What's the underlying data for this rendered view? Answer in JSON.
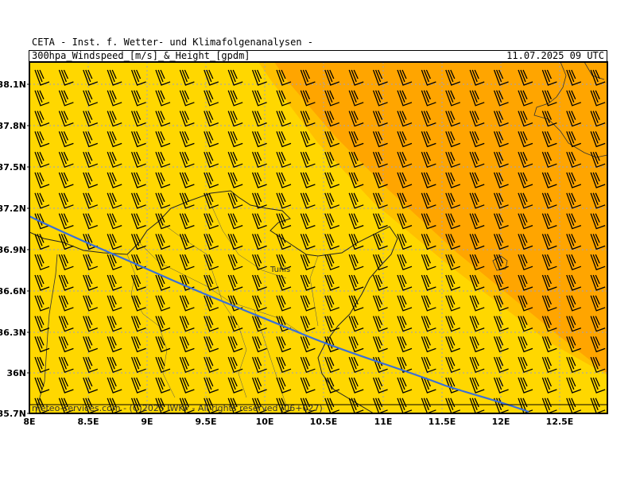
{
  "header": {
    "organization": "CETA - Inst. f. Wetter- und Klimafolgenanalysen -",
    "parameter": "300hpa_Windspeed_[m/s]_&_Height_[gpdm]",
    "datetime": "11.07.2025 09 UTC"
  },
  "map": {
    "lat_labels": [
      "38.1N",
      "37.8N",
      "37.5N",
      "37.2N",
      "36.9N",
      "36.6N",
      "36.3N",
      "36N",
      "35.7N"
    ],
    "lon_labels": [
      "8E",
      "8.5E",
      "9E",
      "9.5E",
      "10E",
      "10.5E",
      "11E",
      "11.5E",
      "12E",
      "12.5E"
    ],
    "city_label": "Tunis",
    "footer": "meteo-services.com - (C)2025 IWKF - All rights reserved (06+027)",
    "colors": {
      "windspeed_low": "#ffd700",
      "windspeed_high": "#ffa500",
      "height_contour": "#3a6fd8",
      "grid": "#9aa0c8",
      "barbs": "#000000"
    },
    "wind_barb_icon": "wind-barb-icon"
  }
}
